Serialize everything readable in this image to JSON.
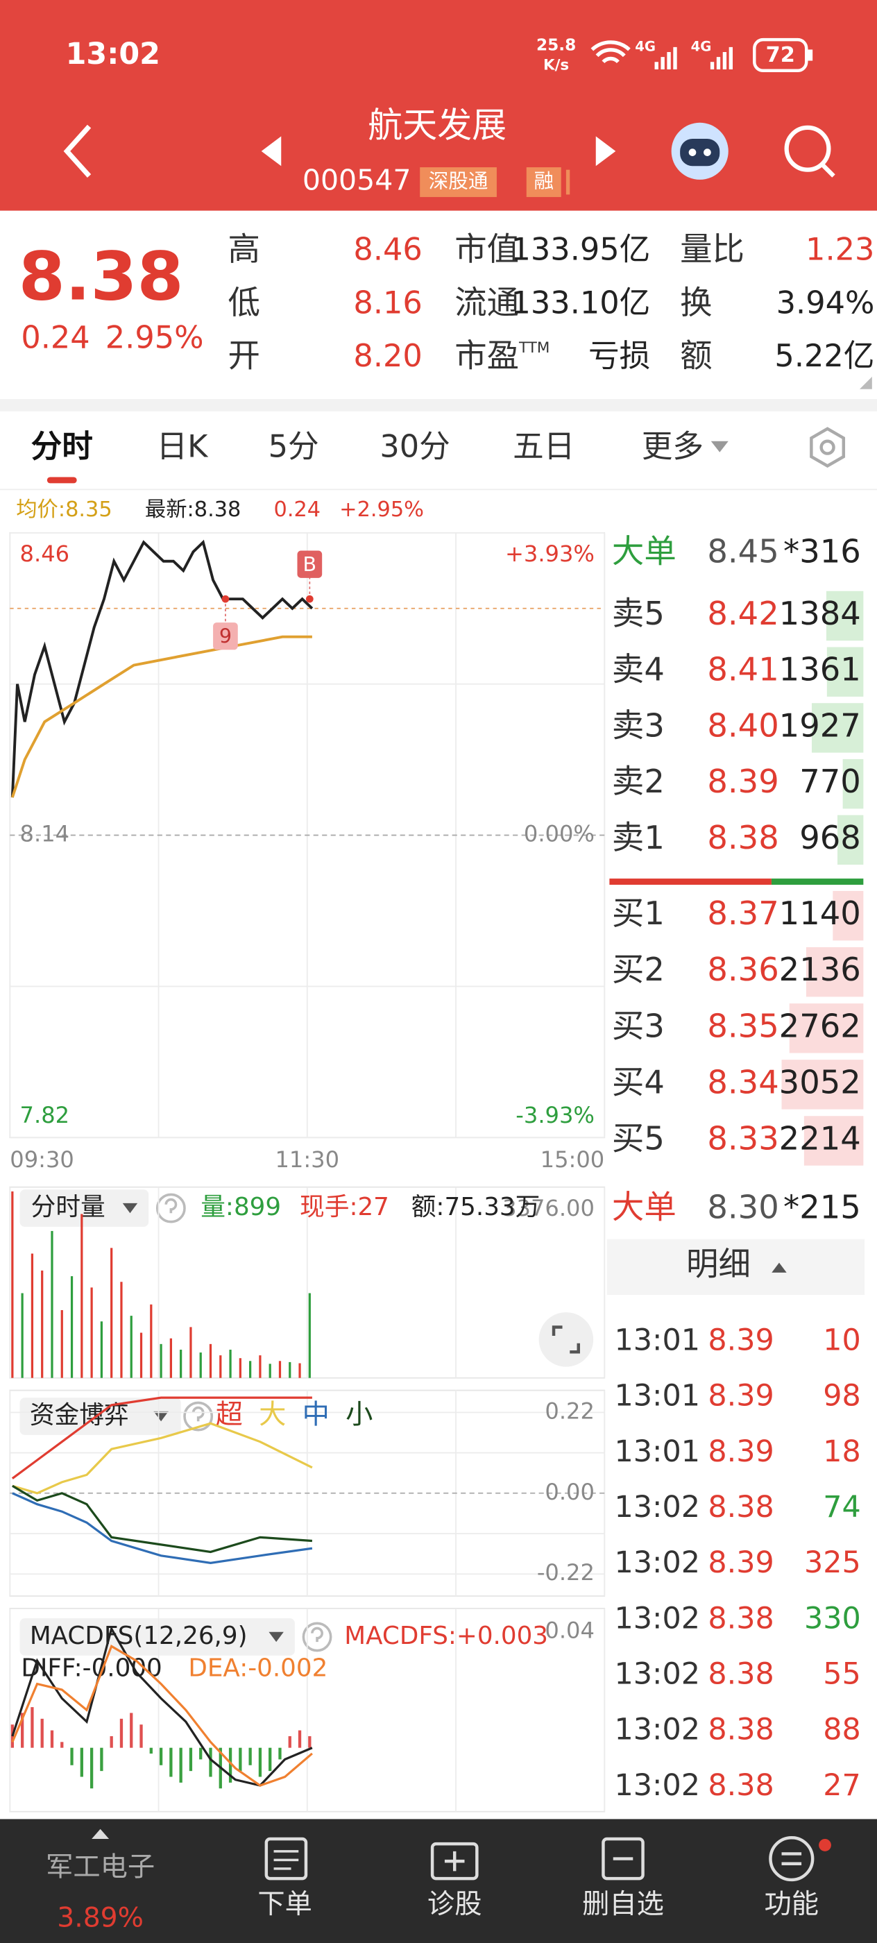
{
  "status_bar": {
    "time": "13:02",
    "speed": "25.8",
    "speed_unit": "K/s",
    "network_1": "4G",
    "network_2": "4G",
    "battery": "72"
  },
  "header": {
    "title": "航天发展",
    "code": "000547",
    "badges": [
      "深股通",
      "融"
    ]
  },
  "quote": {
    "price": "8.38",
    "change": "0.24",
    "change_pct": "2.95%",
    "stats": [
      [
        {
          "label": "高",
          "value": "8.46"
        },
        {
          "label": "市值",
          "value": "133.95亿"
        },
        {
          "label": "量比",
          "value": "1.23"
        }
      ],
      [
        {
          "label": "低",
          "value": "8.16"
        },
        {
          "label": "流通",
          "value": "133.10亿"
        },
        {
          "label": "换",
          "value": "3.94%"
        }
      ],
      [
        {
          "label": "开",
          "value": "8.20"
        },
        {
          "label": "市盈",
          "sup": "TTM",
          "value": "亏损"
        },
        {
          "label": "额",
          "value": "5.22亿"
        }
      ]
    ]
  },
  "tabs": [
    "分时",
    "日K",
    "5分",
    "30分",
    "五日",
    "更多"
  ],
  "info_line": {
    "avg": "均价:8.35",
    "latest": "最新:8.38",
    "change": "0.24",
    "change_pct": "+2.95%"
  },
  "chart_data": [
    {
      "type": "line",
      "yaxis": "left",
      "grid": true,
      "xlim": [
        0,
        240
      ],
      "xticks": [
        {
          "value": 0,
          "label": "09:30"
        },
        {
          "value": 120,
          "label": "11:30"
        },
        {
          "value": 240,
          "label": "15:00"
        }
      ],
      "ylim": [
        7.82,
        8.46
      ],
      "yticks": [
        8.46,
        8.14,
        7.82
      ],
      "y2lim": [
        -3.93,
        3.93
      ],
      "y2ticks": [
        {
          "value": 3.93,
          "label": "+3.93%"
        },
        {
          "value": 0,
          "label": "0.00%"
        },
        {
          "value": -3.93,
          "label": "-3.93%"
        }
      ],
      "series": [
        {
          "color": "#222222",
          "x": [
            1,
            3,
            6,
            10,
            14,
            18,
            22,
            26,
            30,
            34,
            38,
            42,
            46,
            50,
            54,
            58,
            62,
            66,
            70,
            74,
            78,
            82,
            86,
            90,
            94,
            98,
            102,
            106,
            110,
            114,
            118,
            122
          ],
          "values": [
            8.18,
            8.3,
            8.26,
            8.31,
            8.34,
            8.3,
            8.26,
            8.28,
            8.32,
            8.36,
            8.39,
            8.43,
            8.41,
            8.43,
            8.45,
            8.44,
            8.43,
            8.43,
            8.42,
            8.44,
            8.45,
            8.41,
            8.39,
            8.39,
            8.39,
            8.38,
            8.37,
            8.38,
            8.39,
            8.38,
            8.39,
            8.38
          ]
        },
        {
          "color": "#e0a030",
          "x": [
            1,
            6,
            14,
            26,
            38,
            50,
            70,
            90,
            110,
            122
          ],
          "values": [
            8.18,
            8.22,
            8.26,
            8.28,
            8.3,
            8.32,
            8.33,
            8.34,
            8.35,
            8.35
          ]
        }
      ],
      "annotations": [
        {
          "text": "B",
          "x": 121,
          "y": 8.39
        },
        {
          "text": "9",
          "x": 87,
          "y": 8.39
        }
      ]
    },
    {
      "type": "bar",
      "yaxis": "right",
      "title": "分时量",
      "stats": [
        "量:899",
        "现手:27",
        "额:75.33万"
      ],
      "xlim": [
        0,
        240
      ],
      "ylim": [
        0,
        3376
      ],
      "yticks": [
        {
          "value": 3376,
          "label": "3376.00"
        }
      ],
      "x": [
        1,
        5,
        9,
        13,
        17,
        21,
        25,
        29,
        33,
        37,
        41,
        45,
        49,
        53,
        57,
        61,
        65,
        69,
        73,
        77,
        81,
        85,
        89,
        93,
        97,
        101,
        105,
        109,
        113,
        117,
        121
      ],
      "values": [
        3300,
        1500,
        2200,
        1900,
        2600,
        1200,
        1800,
        2900,
        1600,
        1000,
        2300,
        1700,
        1100,
        800,
        1300,
        600,
        700,
        500,
        900,
        450,
        600,
        400,
        500,
        350,
        300,
        400,
        250,
        300,
        280,
        260,
        1500
      ],
      "colors": [
        "#e03c31",
        "#2e9e3e",
        "#e03c31",
        "#e03c31",
        "#2e9e3e",
        "#e03c31",
        "#2e9e3e",
        "#e03c31",
        "#e03c31",
        "#2e9e3e",
        "#e03c31",
        "#e03c31",
        "#2e9e3e",
        "#e03c31",
        "#e03c31",
        "#2e9e3e",
        "#e03c31",
        "#2e9e3e",
        "#e03c31",
        "#2e9e3e",
        "#e03c31",
        "#e03c31",
        "#2e9e3e",
        "#e03c31",
        "#2e9e3e",
        "#e03c31",
        "#2e9e3e",
        "#e03c31",
        "#2e9e3e",
        "#e03c31",
        "#2e9e3e"
      ]
    },
    {
      "type": "line",
      "yaxis": "right",
      "grid": true,
      "title": "资金博弈",
      "xlim": [
        0,
        240
      ],
      "ylim": [
        -0.28,
        0.28
      ],
      "yticks": [
        0.22,
        {
          "value": 0,
          "label": "0.00"
        },
        -0.22
      ],
      "x": [
        1,
        11,
        21,
        31,
        41,
        61,
        81,
        101,
        122
      ],
      "series": [
        {
          "name": "超",
          "color": "#e03c31",
          "values": [
            0.04,
            0.09,
            0.14,
            0.19,
            0.24,
            0.26,
            0.26,
            0.26,
            0.26
          ]
        },
        {
          "name": "大",
          "color": "#e8c94a",
          "values": [
            0.02,
            0.0,
            0.03,
            0.05,
            0.12,
            0.15,
            0.19,
            0.14,
            0.07
          ]
        },
        {
          "name": "中",
          "color": "#2f6db5",
          "values": [
            0.0,
            -0.03,
            -0.05,
            -0.08,
            -0.13,
            -0.17,
            -0.19,
            -0.17,
            -0.15
          ]
        },
        {
          "name": "小",
          "color": "#1c4a1c",
          "values": [
            0.02,
            -0.02,
            0.0,
            -0.03,
            -0.12,
            -0.14,
            -0.16,
            -0.12,
            -0.13
          ]
        }
      ]
    },
    {
      "type": "macd",
      "yaxis": "right",
      "title": "MACDFS(12,26,9)",
      "stats": [
        "MACDFS:+0.003",
        "DIFF:-0.000",
        "DEA:-0.002"
      ],
      "xlim": [
        0,
        240
      ],
      "ylim": [
        -0.022,
        0.048
      ],
      "yticks": [
        0.04
      ],
      "x": [
        1,
        11,
        21,
        31,
        41,
        51,
        61,
        71,
        81,
        91,
        101,
        111,
        122
      ],
      "series": [
        {
          "color": "#222222",
          "values": [
            0.004,
            0.03,
            0.017,
            0.009,
            0.041,
            0.026,
            0.017,
            0.009,
            -0.004,
            -0.011,
            -0.013,
            -0.004,
            0
          ]
        },
        {
          "color": "#f08030",
          "values": [
            0.002,
            0.022,
            0.02,
            0.013,
            0.035,
            0.03,
            0.022,
            0.013,
            0.002,
            -0.007,
            -0.013,
            -0.01,
            -0.002
          ]
        }
      ],
      "up_color": "#e05050",
      "down_color": "#3aa040",
      "bars": {
        "x": [
          1,
          5,
          9,
          13,
          17,
          21,
          25,
          29,
          33,
          37,
          41,
          45,
          49,
          53,
          57,
          61,
          65,
          69,
          73,
          77,
          81,
          85,
          89,
          93,
          97,
          101,
          105,
          109,
          113,
          117,
          121
        ],
        "values": [
          0.008,
          0.012,
          0.014,
          0.01,
          0.006,
          0.002,
          -0.006,
          -0.01,
          -0.014,
          -0.008,
          0.004,
          0.01,
          0.012,
          0.008,
          -0.002,
          -0.006,
          -0.01,
          -0.012,
          -0.008,
          -0.004,
          -0.01,
          -0.014,
          -0.012,
          -0.008,
          -0.006,
          -0.01,
          -0.008,
          -0.004,
          0.004,
          0.006,
          0.004
        ]
      }
    }
  ],
  "order_book": {
    "big_sell": {
      "label": "大单",
      "price": "8.45",
      "volume": "*316"
    },
    "asks": [
      {
        "label": "卖5",
        "price": "8.42",
        "volume": 1384
      },
      {
        "label": "卖4",
        "price": "8.41",
        "volume": 1361
      },
      {
        "label": "卖3",
        "price": "8.40",
        "volume": 1927
      },
      {
        "label": "卖2",
        "price": "8.39",
        "volume": 770
      },
      {
        "label": "卖1",
        "price": "8.38",
        "volume": 968
      }
    ],
    "bids": [
      {
        "label": "买1",
        "price": "8.37",
        "volume": 1140
      },
      {
        "label": "买2",
        "price": "8.36",
        "volume": 2136
      },
      {
        "label": "买3",
        "price": "8.35",
        "volume": 2762
      },
      {
        "label": "买4",
        "price": "8.34",
        "volume": 3052
      },
      {
        "label": "买5",
        "price": "8.33",
        "volume": 2214
      }
    ],
    "big_buy": {
      "label": "大单",
      "price": "8.30",
      "volume": "*215"
    }
  },
  "trades": {
    "title": "明细",
    "rows": [
      {
        "time": "13:01",
        "price": "8.39",
        "volume": 10,
        "side": "buy"
      },
      {
        "time": "13:01",
        "price": "8.39",
        "volume": 98,
        "side": "buy"
      },
      {
        "time": "13:01",
        "price": "8.39",
        "volume": 18,
        "side": "buy"
      },
      {
        "time": "13:02",
        "price": "8.38",
        "volume": 74,
        "side": "sell"
      },
      {
        "time": "13:02",
        "price": "8.39",
        "volume": 325,
        "side": "buy"
      },
      {
        "time": "13:02",
        "price": "8.38",
        "volume": 330,
        "side": "sell"
      },
      {
        "time": "13:02",
        "price": "8.38",
        "volume": 55,
        "side": "buy"
      },
      {
        "time": "13:02",
        "price": "8.38",
        "volume": 88,
        "side": "buy"
      },
      {
        "time": "13:02",
        "price": "8.38",
        "volume": 27,
        "side": "buy"
      }
    ]
  },
  "bottom_nav": [
    {
      "label": "军工电子",
      "sub": "3.89%"
    },
    {
      "label": "下单"
    },
    {
      "label": "诊股"
    },
    {
      "label": "删自选"
    },
    {
      "label": "功能"
    }
  ]
}
